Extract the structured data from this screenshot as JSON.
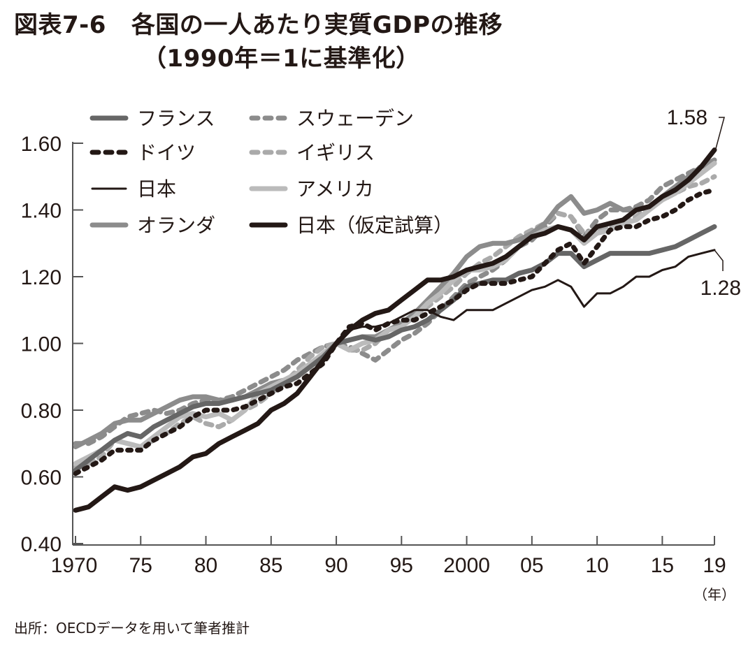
{
  "header": {
    "figure_number": "図表7-6",
    "title_line1": "各国の一人あたり実質GDPの推移",
    "title_line2": "（1990年＝1に基準化）"
  },
  "footer": {
    "source": "出所：OECDデータを用いて筆者推計"
  },
  "chart_data": {
    "type": "line",
    "title": "各国の一人あたり実質GDPの推移（1990年＝1に基準化）",
    "xlabel": "（年）",
    "ylabel": "",
    "xlim": [
      1970,
      2019
    ],
    "ylim": [
      0.4,
      1.6
    ],
    "grid": false,
    "legend_position": "top-left",
    "x_ticks": [
      1970,
      1975,
      1980,
      1985,
      1990,
      1995,
      2000,
      2005,
      2010,
      2015,
      2019
    ],
    "x_tick_labels": [
      "1970",
      "75",
      "80",
      "85",
      "90",
      "95",
      "2000",
      "05",
      "10",
      "15",
      "19"
    ],
    "y_ticks": [
      0.4,
      0.6,
      0.8,
      1.0,
      1.2,
      1.4,
      1.6
    ],
    "y_tick_labels": [
      "0.40",
      "0.60",
      "0.80",
      "1.00",
      "1.20",
      "1.40",
      "1.60"
    ],
    "annotations": [
      {
        "text": "1.58",
        "series": "日本（仮定試算）",
        "x": 2019,
        "y": 1.58
      },
      {
        "text": "1.28",
        "series": "日本",
        "x": 2019,
        "y": 1.28
      }
    ],
    "x": [
      1970,
      1971,
      1972,
      1973,
      1974,
      1975,
      1976,
      1977,
      1978,
      1979,
      1980,
      1981,
      1982,
      1983,
      1984,
      1985,
      1986,
      1987,
      1988,
      1989,
      1990,
      1991,
      1992,
      1993,
      1994,
      1995,
      1996,
      1997,
      1998,
      1999,
      2000,
      2001,
      2002,
      2003,
      2004,
      2005,
      2006,
      2007,
      2008,
      2009,
      2010,
      2011,
      2012,
      2013,
      2014,
      2015,
      2016,
      2017,
      2018,
      2019
    ],
    "series": [
      {
        "name": "フランス",
        "legend_label": "フランス",
        "color": "#666666",
        "style": "solid",
        "width": 7,
        "values": [
          0.62,
          0.65,
          0.68,
          0.71,
          0.73,
          0.72,
          0.75,
          0.77,
          0.79,
          0.81,
          0.82,
          0.82,
          0.83,
          0.84,
          0.85,
          0.86,
          0.88,
          0.9,
          0.93,
          0.96,
          1.0,
          1.01,
          1.02,
          1.01,
          1.02,
          1.04,
          1.05,
          1.07,
          1.1,
          1.13,
          1.17,
          1.18,
          1.19,
          1.19,
          1.21,
          1.22,
          1.24,
          1.27,
          1.27,
          1.23,
          1.25,
          1.27,
          1.27,
          1.27,
          1.27,
          1.28,
          1.29,
          1.31,
          1.33,
          1.35
        ]
      },
      {
        "name": "ドイツ",
        "legend_label": "ドイツ",
        "color": "#231815",
        "style": "dotted",
        "width": 7,
        "values": [
          0.61,
          0.63,
          0.65,
          0.68,
          0.68,
          0.68,
          0.71,
          0.73,
          0.75,
          0.78,
          0.8,
          0.8,
          0.8,
          0.81,
          0.83,
          0.85,
          0.87,
          0.88,
          0.91,
          0.94,
          1.0,
          1.05,
          1.06,
          1.04,
          1.06,
          1.07,
          1.07,
          1.09,
          1.11,
          1.13,
          1.16,
          1.18,
          1.18,
          1.18,
          1.19,
          1.2,
          1.24,
          1.28,
          1.3,
          1.24,
          1.29,
          1.34,
          1.35,
          1.35,
          1.37,
          1.38,
          1.4,
          1.43,
          1.45,
          1.46
        ]
      },
      {
        "name": "日本",
        "legend_label": "日本",
        "color": "#231815",
        "style": "solid",
        "width": 3,
        "values": [
          0.5,
          0.51,
          0.54,
          0.57,
          0.56,
          0.57,
          0.59,
          0.61,
          0.63,
          0.66,
          0.67,
          0.7,
          0.72,
          0.74,
          0.76,
          0.8,
          0.82,
          0.85,
          0.9,
          0.95,
          1.0,
          1.04,
          1.05,
          1.05,
          1.06,
          1.08,
          1.1,
          1.1,
          1.08,
          1.07,
          1.1,
          1.1,
          1.1,
          1.12,
          1.14,
          1.16,
          1.17,
          1.19,
          1.17,
          1.11,
          1.15,
          1.15,
          1.17,
          1.2,
          1.2,
          1.22,
          1.23,
          1.26,
          1.27,
          1.28
        ]
      },
      {
        "name": "オランダ",
        "legend_label": "オランダ",
        "color": "#8c8c8c",
        "style": "solid",
        "width": 7,
        "values": [
          0.69,
          0.71,
          0.73,
          0.76,
          0.77,
          0.77,
          0.79,
          0.81,
          0.83,
          0.84,
          0.84,
          0.83,
          0.83,
          0.84,
          0.86,
          0.88,
          0.89,
          0.91,
          0.93,
          0.97,
          1.0,
          1.01,
          1.02,
          1.02,
          1.04,
          1.06,
          1.09,
          1.13,
          1.17,
          1.21,
          1.26,
          1.29,
          1.3,
          1.3,
          1.31,
          1.33,
          1.36,
          1.41,
          1.44,
          1.39,
          1.4,
          1.42,
          1.4,
          1.4,
          1.41,
          1.44,
          1.47,
          1.5,
          1.53,
          1.55
        ]
      },
      {
        "name": "スウェーデン",
        "legend_label": "スウェーデン",
        "color": "#8c8c8c",
        "style": "dashed",
        "width": 7,
        "values": [
          0.7,
          0.7,
          0.72,
          0.75,
          0.78,
          0.79,
          0.8,
          0.79,
          0.8,
          0.82,
          0.83,
          0.83,
          0.84,
          0.86,
          0.88,
          0.9,
          0.92,
          0.95,
          0.97,
          0.99,
          1.0,
          0.99,
          0.97,
          0.95,
          0.98,
          1.01,
          1.03,
          1.06,
          1.1,
          1.14,
          1.18,
          1.2,
          1.22,
          1.25,
          1.29,
          1.31,
          1.35,
          1.39,
          1.38,
          1.32,
          1.37,
          1.4,
          1.4,
          1.41,
          1.43,
          1.47,
          1.49,
          1.51,
          1.53,
          1.54
        ]
      },
      {
        "name": "イギリス",
        "legend_label": "イギリス",
        "color": "#aaaaaa",
        "style": "dashed",
        "width": 7,
        "values": [
          0.63,
          0.64,
          0.66,
          0.71,
          0.7,
          0.69,
          0.71,
          0.73,
          0.76,
          0.78,
          0.76,
          0.75,
          0.77,
          0.8,
          0.82,
          0.85,
          0.88,
          0.92,
          0.96,
          0.99,
          1.0,
          0.98,
          0.98,
          1.0,
          1.04,
          1.06,
          1.08,
          1.11,
          1.14,
          1.17,
          1.21,
          1.24,
          1.26,
          1.29,
          1.32,
          1.34,
          1.36,
          1.39,
          1.38,
          1.33,
          1.34,
          1.35,
          1.36,
          1.38,
          1.41,
          1.43,
          1.45,
          1.47,
          1.48,
          1.5
        ]
      },
      {
        "name": "アメリカ",
        "legend_label": "アメリカ",
        "color": "#bbbbbb",
        "style": "solid",
        "width": 7,
        "values": [
          0.64,
          0.66,
          0.68,
          0.71,
          0.7,
          0.69,
          0.72,
          0.75,
          0.78,
          0.79,
          0.78,
          0.79,
          0.77,
          0.8,
          0.85,
          0.87,
          0.89,
          0.91,
          0.94,
          0.97,
          1.0,
          0.98,
          1.0,
          1.01,
          1.04,
          1.05,
          1.08,
          1.12,
          1.15,
          1.19,
          1.22,
          1.22,
          1.23,
          1.25,
          1.29,
          1.32,
          1.34,
          1.35,
          1.34,
          1.3,
          1.33,
          1.34,
          1.36,
          1.37,
          1.4,
          1.43,
          1.45,
          1.48,
          1.51,
          1.54
        ]
      },
      {
        "name": "日本（仮定試算）",
        "legend_label": "日本（仮定試算）",
        "color": "#231815",
        "style": "solid",
        "width": 7,
        "values": [
          0.5,
          0.51,
          0.54,
          0.57,
          0.56,
          0.57,
          0.59,
          0.61,
          0.63,
          0.66,
          0.67,
          0.7,
          0.72,
          0.74,
          0.76,
          0.8,
          0.82,
          0.85,
          0.9,
          0.95,
          1.0,
          1.04,
          1.07,
          1.09,
          1.1,
          1.13,
          1.16,
          1.19,
          1.19,
          1.2,
          1.22,
          1.23,
          1.24,
          1.26,
          1.29,
          1.32,
          1.33,
          1.35,
          1.34,
          1.31,
          1.35,
          1.36,
          1.37,
          1.4,
          1.41,
          1.44,
          1.46,
          1.49,
          1.53,
          1.58
        ]
      }
    ]
  }
}
